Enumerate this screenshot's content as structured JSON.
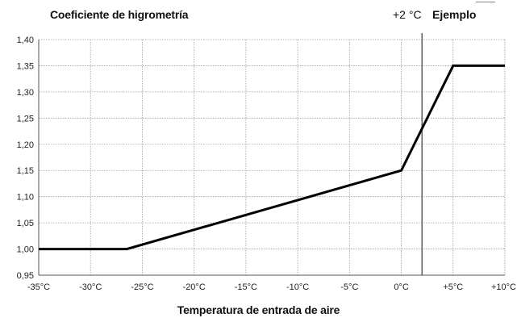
{
  "chart_data": {
    "type": "line",
    "title": "Coeficiente de higrometría",
    "xlabel": "Temperatura de entrada de aire",
    "ylabel": "",
    "x_ticks": [
      -35,
      -30,
      -25,
      -20,
      -15,
      -10,
      -5,
      0,
      5,
      10
    ],
    "x_tick_labels": [
      "-35°C",
      "-30°C",
      "-25°C",
      "-20°C",
      "-15°C",
      "-10°C",
      "-5°C",
      "0°C",
      "+5°C",
      "+10°C"
    ],
    "y_ticks": [
      0.95,
      1.0,
      1.05,
      1.1,
      1.15,
      1.2,
      1.25,
      1.3,
      1.35,
      1.4
    ],
    "y_tick_labels": [
      "0,95",
      "1,00",
      "1,05",
      "1,10",
      "1,15",
      "1,20",
      "1,25",
      "1,30",
      "1,35",
      "1,40"
    ],
    "xlim": [
      -35,
      10
    ],
    "ylim": [
      0.95,
      1.4
    ],
    "grid": true,
    "series": [
      {
        "x": [
          -35,
          -26.5,
          0,
          5,
          10
        ],
        "y": [
          1.0,
          1.0,
          1.15,
          1.35,
          1.35
        ]
      }
    ],
    "annotation": {
      "value_label": "+2 °C",
      "label": "Ejemplo",
      "x": 2
    },
    "colors": {
      "line": "#000000",
      "grid": "#9a9a9a",
      "axis": "#555555",
      "marker_line": "#555555"
    }
  }
}
